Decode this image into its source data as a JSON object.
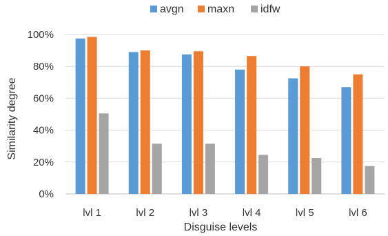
{
  "chart_data": {
    "type": "bar",
    "categories": [
      "lvl 1",
      "lvl 2",
      "lvl 3",
      "lvl 4",
      "lvl 5",
      "lvl 6"
    ],
    "series": [
      {
        "name": "avgn",
        "color": "#5B9BD5",
        "values": [
          97.5,
          89,
          87.5,
          78,
          72.5,
          67
        ]
      },
      {
        "name": "maxn",
        "color": "#ED7D31",
        "values": [
          98.5,
          90,
          89.5,
          86.5,
          80,
          75
        ]
      },
      {
        "name": "idfw",
        "color": "#A5A5A5",
        "values": [
          50.5,
          31.5,
          31.5,
          24.5,
          22.5,
          17.5
        ]
      }
    ],
    "xlabel": "Disguise levels",
    "ylabel": "Similarity degree",
    "ylim": [
      0,
      100
    ],
    "yticks": [
      "0%",
      "20%",
      "40%",
      "60%",
      "80%",
      "100%"
    ],
    "ytick_values": [
      0,
      20,
      40,
      60,
      80,
      100
    ],
    "grid": true,
    "legend_position": "top-center"
  }
}
